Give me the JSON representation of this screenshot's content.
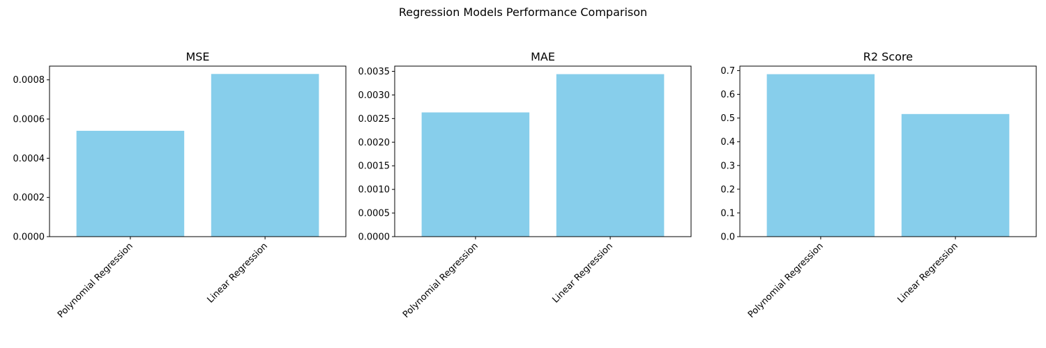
{
  "figure": {
    "title": "Regression Models Performance Comparison",
    "bar_color": "#87CEEB"
  },
  "chart_data": [
    {
      "type": "bar",
      "title": "MSE",
      "xlabel": "",
      "ylabel": "",
      "categories": [
        "Polynomial Regression",
        "Linear Regression"
      ],
      "values": [
        0.00054,
        0.00083
      ],
      "ylim": [
        0,
        0.00087
      ],
      "yticks": [
        0,
        0.0002,
        0.0004,
        0.0006,
        0.0008
      ],
      "ytick_labels": [
        "0.0000",
        "0.0002",
        "0.0004",
        "0.0006",
        "0.0008"
      ],
      "grid": false
    },
    {
      "type": "bar",
      "title": "MAE",
      "xlabel": "",
      "ylabel": "",
      "categories": [
        "Polynomial Regression",
        "Linear Regression"
      ],
      "values": [
        0.00263,
        0.00344
      ],
      "ylim": [
        0,
        0.00361
      ],
      "yticks": [
        0,
        0.0005,
        0.001,
        0.0015,
        0.002,
        0.0025,
        0.003,
        0.0035
      ],
      "ytick_labels": [
        "0.0000",
        "0.0005",
        "0.0010",
        "0.0015",
        "0.0020",
        "0.0025",
        "0.0030",
        "0.0035"
      ],
      "grid": false
    },
    {
      "type": "bar",
      "title": "R2 Score",
      "xlabel": "",
      "ylabel": "",
      "categories": [
        "Polynomial Regression",
        "Linear Regression"
      ],
      "values": [
        0.685,
        0.517
      ],
      "ylim": [
        0,
        0.719
      ],
      "yticks": [
        0,
        0.1,
        0.2,
        0.3,
        0.4,
        0.5,
        0.6,
        0.7
      ],
      "ytick_labels": [
        "0.0",
        "0.1",
        "0.2",
        "0.3",
        "0.4",
        "0.5",
        "0.6",
        "0.7"
      ],
      "grid": false
    }
  ]
}
